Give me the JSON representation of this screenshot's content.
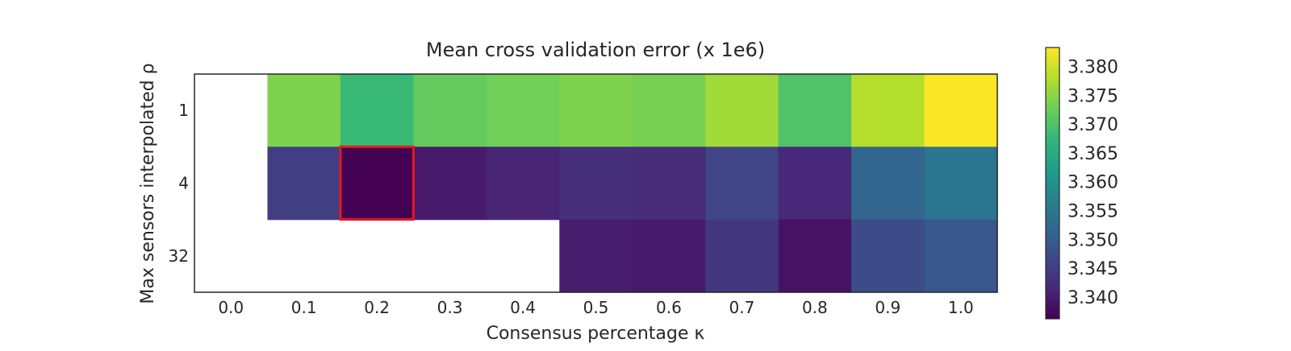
{
  "chart_data": {
    "type": "heatmap",
    "title": "Mean cross validation error (x 1e6)",
    "xlabel": "Consensus percentage κ",
    "ylabel": "Max sensors interpolated ρ",
    "x_categories": [
      "0.0",
      "0.1",
      "0.2",
      "0.3",
      "0.4",
      "0.5",
      "0.6",
      "0.7",
      "0.8",
      "0.9",
      "1.0"
    ],
    "y_categories": [
      "1",
      "4",
      "32"
    ],
    "values": [
      [
        null,
        3.374,
        3.368,
        3.372,
        3.373,
        3.374,
        3.3735,
        3.3765,
        3.37,
        3.378,
        3.383
      ],
      [
        null,
        3.345,
        3.336,
        3.3395,
        3.341,
        3.3425,
        3.342,
        3.346,
        3.3415,
        3.3515,
        3.3545
      ],
      [
        null,
        null,
        null,
        null,
        null,
        3.34,
        3.3395,
        3.344,
        3.3385,
        3.347,
        3.349
      ]
    ],
    "highlight": {
      "row": 1,
      "col": 2,
      "color": "#e41a1c"
    },
    "colormap": "viridis",
    "colorbar": {
      "range": [
        3.3362,
        3.3833
      ],
      "ticks": [
        3.34,
        3.345,
        3.35,
        3.355,
        3.36,
        3.365,
        3.37,
        3.375,
        3.38
      ],
      "tick_labels": [
        "3.340",
        "3.345",
        "3.350",
        "3.355",
        "3.360",
        "3.365",
        "3.370",
        "3.375",
        "3.380"
      ]
    },
    "grid": false
  }
}
